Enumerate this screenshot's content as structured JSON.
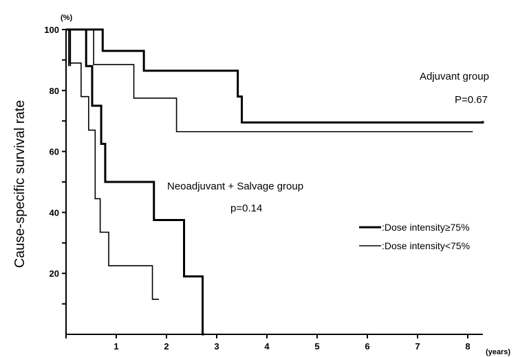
{
  "chart_data": {
    "type": "line",
    "step": true,
    "ylabel": "Cause-specific survival rate",
    "y_unit": "(%)",
    "x_unit": "(years)",
    "xlim": [
      0,
      8.3
    ],
    "ylim": [
      0,
      100
    ],
    "x_ticks": [
      0,
      1,
      2,
      3,
      4,
      5,
      6,
      7,
      8
    ],
    "x_tick_labels": [
      "1",
      "2",
      "3",
      "4",
      "5",
      "6",
      "7",
      "8"
    ],
    "y_ticks": [
      10,
      20,
      30,
      40,
      50,
      60,
      70,
      80,
      90,
      100
    ],
    "y_tick_labels": [
      "20",
      "40",
      "60",
      "80",
      "100"
    ],
    "legend": [
      {
        "label": ":Dose intensity≥75%",
        "style": "thick"
      },
      {
        "label": ":Dose intensity<75%",
        "style": "thin"
      }
    ],
    "annotations": [
      {
        "text": "Adjuvant group"
      },
      {
        "text": "P=0.67"
      },
      {
        "text": "Neoadjuvant + Salvage group"
      },
      {
        "text": "p=0.14"
      }
    ],
    "series": [
      {
        "group": "adjuvant",
        "style": "thick",
        "x": [
          0,
          0.35,
          0.73,
          1.05,
          1.55,
          3.42,
          3.5,
          8.3
        ],
        "y": [
          100,
          100,
          93,
          93,
          86.5,
          78,
          69.5,
          70
        ]
      },
      {
        "group": "adjuvant",
        "style": "thin",
        "x": [
          0,
          0.25,
          0.55,
          1.35,
          2.2,
          8.1
        ],
        "y": [
          100,
          100,
          88.5,
          77.5,
          66.5,
          66.5
        ]
      },
      {
        "group": "neoadjuvant_salvage",
        "style": "thick",
        "x": [
          0,
          0.05,
          0.4,
          0.52,
          0.7,
          0.78,
          1.75,
          2.35,
          2.72,
          2.75
        ],
        "y": [
          100,
          100,
          88,
          75,
          62.5,
          50,
          37.5,
          19,
          0,
          0
        ]
      },
      {
        "group": "neoadjuvant_salvage",
        "style": "thin",
        "x": [
          0,
          0.08,
          0.3,
          0.45,
          0.58,
          0.68,
          0.85,
          1.72,
          1.85
        ],
        "y": [
          100,
          89,
          78,
          67,
          44.5,
          33.5,
          22.5,
          11.5,
          11.5
        ]
      }
    ]
  }
}
